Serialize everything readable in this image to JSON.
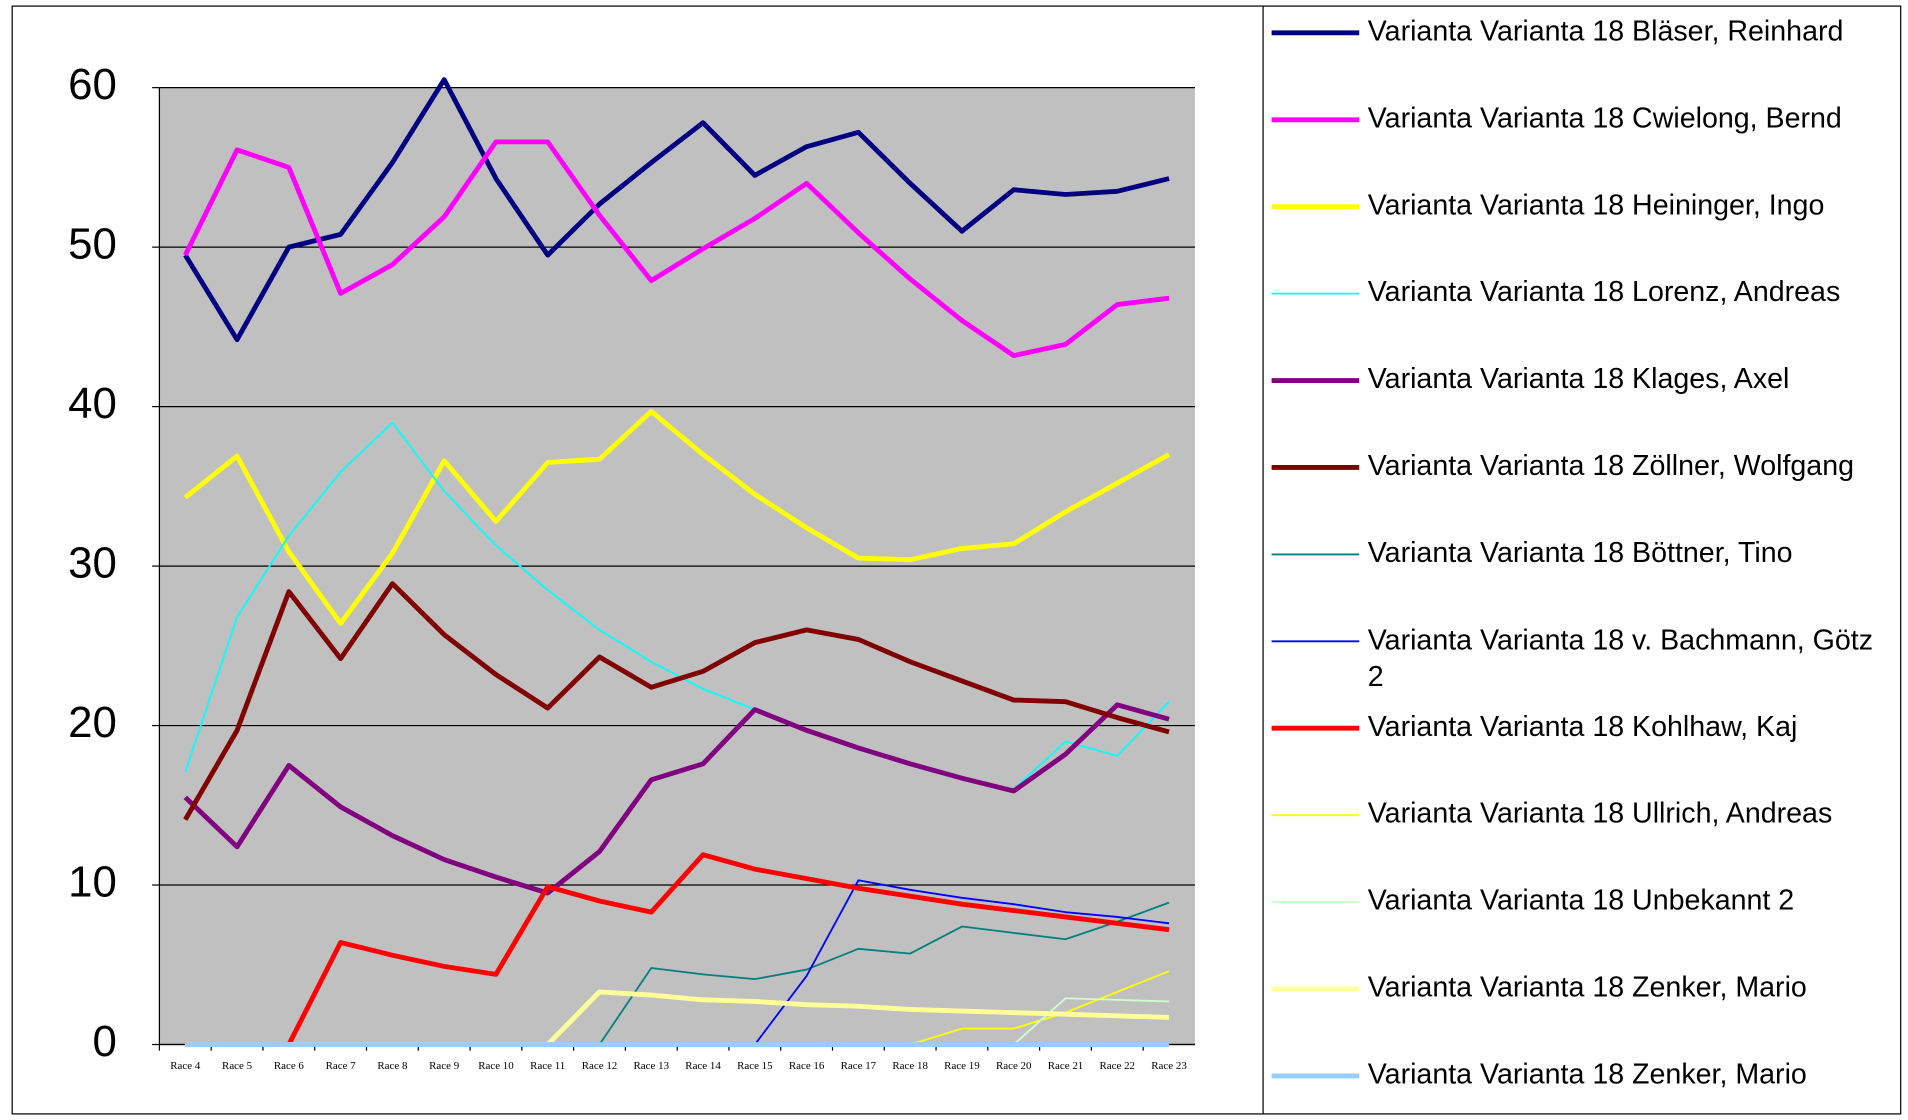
{
  "chart_data": {
    "type": "line",
    "categories": [
      "Race 4",
      "Race 5",
      "Race 6",
      "Race 7",
      "Race 8",
      "Race 9",
      "Race 10",
      "Race 11",
      "Race 12",
      "Race 13",
      "Race 14",
      "Race 15",
      "Race 16",
      "Race 17",
      "Race 18",
      "Race 19",
      "Race 20",
      "Race 21",
      "Race 22",
      "Race 23"
    ],
    "ylim": [
      0,
      60
    ],
    "yticks": [
      0,
      10,
      20,
      30,
      40,
      50,
      60
    ],
    "grid": true,
    "legend": "right",
    "series": [
      {
        "name": "Varianta Varianta 18 Bläser, Reinhard",
        "color": "#000080",
        "width": 4,
        "values": [
          49.5,
          44.2,
          50,
          50.8,
          55.3,
          60.5,
          54.3,
          49.5,
          52.7,
          55.3,
          57.8,
          54.5,
          56.3,
          57.2,
          54,
          51,
          53.6,
          53.3,
          53.5,
          54.3
        ]
      },
      {
        "name": "Varianta Varianta 18 Cwielong, Bernd",
        "color": "#ff00ff",
        "width": 4,
        "values": [
          49.5,
          56.1,
          55,
          47.1,
          48.9,
          51.9,
          56.6,
          56.6,
          52,
          47.9,
          49.9,
          51.8,
          54,
          50.9,
          48,
          45.4,
          43.2,
          43.9,
          46.4,
          46.8
        ]
      },
      {
        "name": "Varianta Varianta 18 Heininger, Ingo",
        "color": "#ffff00",
        "width": 4,
        "values": [
          34.3,
          36.9,
          30.9,
          26.4,
          30.8,
          36.6,
          32.8,
          36.5,
          36.7,
          39.7,
          37,
          34.5,
          32.4,
          30.5,
          30.4,
          31.1,
          31.4,
          33.4,
          35.2,
          37
        ]
      },
      {
        "name": "Varianta Varianta 18 Lorenz, Andreas",
        "color": "#00ffff",
        "width": 1.5,
        "values": [
          17.1,
          26.8,
          31.9,
          35.9,
          39,
          34.7,
          31.3,
          28.5,
          26,
          24,
          22.3,
          21,
          19.7,
          18.5,
          17.6,
          16.7,
          16,
          19,
          18.1,
          21.5
        ]
      },
      {
        "name": "Varianta Varianta 18 Klages, Axel",
        "color": "#800080",
        "width": 4,
        "values": [
          15.5,
          12.4,
          17.5,
          14.9,
          13.1,
          11.6,
          10.5,
          9.5,
          12.1,
          16.6,
          17.6,
          21,
          19.7,
          18.6,
          17.6,
          16.7,
          15.9,
          18.2,
          21.3,
          20.4
        ]
      },
      {
        "name": "Varianta Varianta 18 Zöllner, Wolfgang",
        "color": "#800000",
        "width": 4,
        "values": [
          14.1,
          19.7,
          28.4,
          24.2,
          28.9,
          25.7,
          23.2,
          21.1,
          24.3,
          22.4,
          23.4,
          25.2,
          26,
          25.4,
          24,
          22.8,
          21.6,
          21.5,
          20.5,
          19.6
        ]
      },
      {
        "name": "Varianta Varianta 18 Böttner, Tino",
        "color": "#008080",
        "width": 1.5,
        "values": [
          0,
          0,
          0,
          0,
          0,
          0,
          0,
          0,
          0,
          4.8,
          4.4,
          4.1,
          4.7,
          6,
          5.7,
          7.4,
          7,
          6.6,
          7.7,
          8.9
        ]
      },
      {
        "name": "Varianta Varianta 18 v. Bachmann, Götz 2",
        "color": "#0000ff",
        "width": 1.5,
        "values": [
          0,
          0,
          0,
          0,
          0,
          0,
          0,
          0,
          0,
          0,
          0,
          0,
          4.3,
          10.3,
          9.7,
          9.2,
          8.8,
          8.3,
          8,
          7.6
        ]
      },
      {
        "name": "Varianta Varianta 18 Kohlhaw, Kaj",
        "color": "#ff0000",
        "width": 4,
        "values": [
          0,
          0,
          0,
          6.4,
          5.6,
          4.9,
          4.4,
          9.9,
          9,
          8.3,
          11.9,
          11,
          10.4,
          9.8,
          9.3,
          8.8,
          8.4,
          8,
          7.6,
          7.2
        ]
      },
      {
        "name": "Varianta Varianta 18 Ullrich, Andreas",
        "color": "#ffff00",
        "width": 1.5,
        "values": [
          0,
          0,
          0,
          0,
          0,
          0,
          0,
          0,
          0,
          0,
          0,
          0,
          0,
          0,
          0,
          1,
          1,
          2,
          3.3,
          4.6
        ]
      },
      {
        "name": "Varianta Varianta 18 Unbekannt 2",
        "color": "#ccffcc",
        "width": 1.5,
        "values": [
          0,
          0,
          0,
          0,
          0,
          0,
          0,
          0,
          0,
          0,
          0,
          0,
          0,
          0,
          0,
          0,
          0,
          2.9,
          2.8,
          2.7
        ]
      },
      {
        "name": "Varianta Varianta 18 Zenker, Mario",
        "color": "#ffff99",
        "width": 4,
        "values": [
          0,
          0,
          0,
          0,
          0,
          0,
          0,
          0,
          3.3,
          3.1,
          2.8,
          2.7,
          2.5,
          2.4,
          2.2,
          2.1,
          2,
          1.9,
          1.8,
          1.7
        ]
      },
      {
        "name": "Varianta Varianta 18 Zenker, Mario",
        "color": "#99ccff",
        "width": 4,
        "values": [
          0,
          0,
          0,
          0,
          0,
          0,
          0,
          0,
          0,
          0,
          0,
          0,
          0,
          0,
          0,
          0,
          0,
          0,
          0,
          0
        ]
      }
    ]
  }
}
